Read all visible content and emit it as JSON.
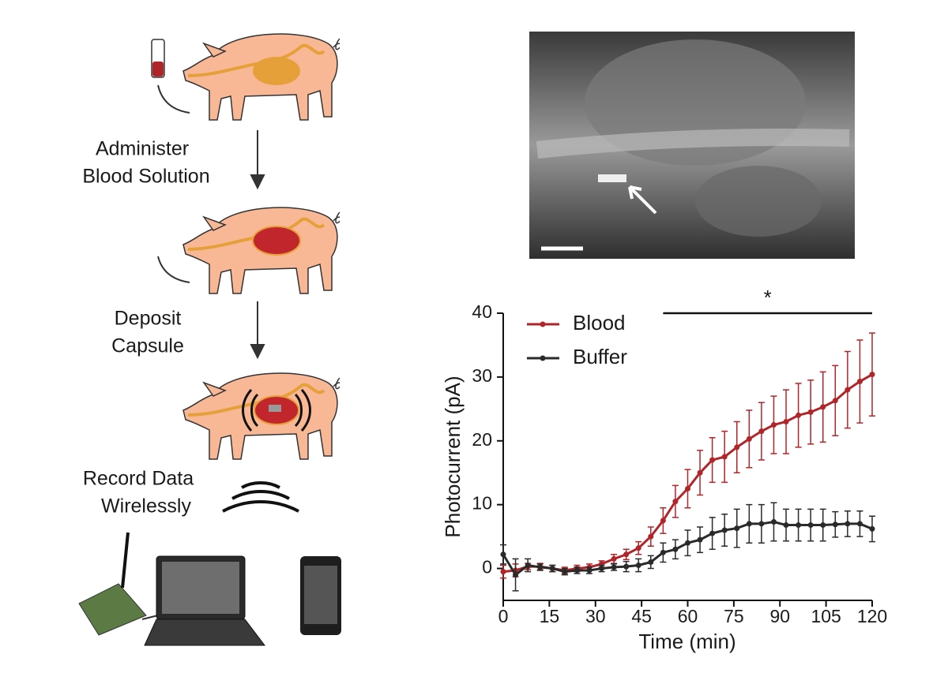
{
  "diagram": {
    "steps": [
      [
        "Administer",
        "Blood Solution"
      ],
      [
        "Deposit",
        "Capsule"
      ],
      [
        "Record Data",
        "Wirelessly"
      ]
    ]
  },
  "chart_data": {
    "type": "line",
    "x_label": "Time (min)",
    "y_label": "Photocurrent (pA)",
    "x": [
      0,
      4,
      8,
      12,
      16,
      20,
      24,
      28,
      32,
      36,
      40,
      44,
      48,
      52,
      56,
      60,
      64,
      68,
      72,
      76,
      80,
      84,
      88,
      92,
      96,
      100,
      104,
      108,
      112,
      116,
      120
    ],
    "series": [
      {
        "name": "Blood",
        "color": "#b0252a",
        "values": [
          -0.5,
          -0.3,
          0.3,
          0.3,
          0,
          -0.3,
          0,
          0.2,
          0.7,
          1.5,
          2.2,
          3.2,
          5,
          7.5,
          10.5,
          12.5,
          15,
          17,
          17.5,
          19,
          20.3,
          21.5,
          22.5,
          23,
          24,
          24.5,
          25.3,
          26.3,
          28,
          29.3,
          30.4
        ],
        "errors": [
          1,
          1,
          0.5,
          0.5,
          0.5,
          0.5,
          0.5,
          0.5,
          0.5,
          0.7,
          0.8,
          1,
          1.5,
          2,
          2.5,
          3,
          3.5,
          3.5,
          4,
          4,
          4.5,
          4.5,
          4.5,
          5,
          5,
          5,
          5.5,
          5.5,
          6,
          6.5,
          6.5
        ]
      },
      {
        "name": "Buffer",
        "color": "#2a2a2a",
        "values": [
          2.2,
          -1,
          0.5,
          0.2,
          0,
          -0.5,
          -0.3,
          -0.3,
          0,
          0.2,
          0.3,
          0.5,
          1,
          2.5,
          3,
          4,
          4.5,
          5.5,
          6,
          6.3,
          7,
          7,
          7.3,
          6.8,
          6.8,
          6.8,
          6.8,
          6.9,
          7,
          7,
          6.2
        ],
        "errors": [
          1.5,
          2.5,
          1,
          0.5,
          0.5,
          0.5,
          0.5,
          0.5,
          0.5,
          0.5,
          0.8,
          1,
          1,
          1.5,
          1.5,
          2,
          2,
          2.5,
          2.5,
          3,
          3,
          3,
          3,
          2.5,
          2.5,
          2.5,
          2.5,
          2,
          2,
          2,
          2
        ]
      }
    ],
    "xlim": [
      0,
      120
    ],
    "xticks": [
      0,
      15,
      30,
      45,
      60,
      75,
      90,
      105,
      120
    ],
    "ylim": [
      -5,
      40
    ],
    "yticks": [
      0,
      10,
      20,
      30,
      40
    ],
    "significance": {
      "x": [
        52,
        120
      ],
      "y": 40,
      "label": "*"
    },
    "legend": "upper-left"
  }
}
